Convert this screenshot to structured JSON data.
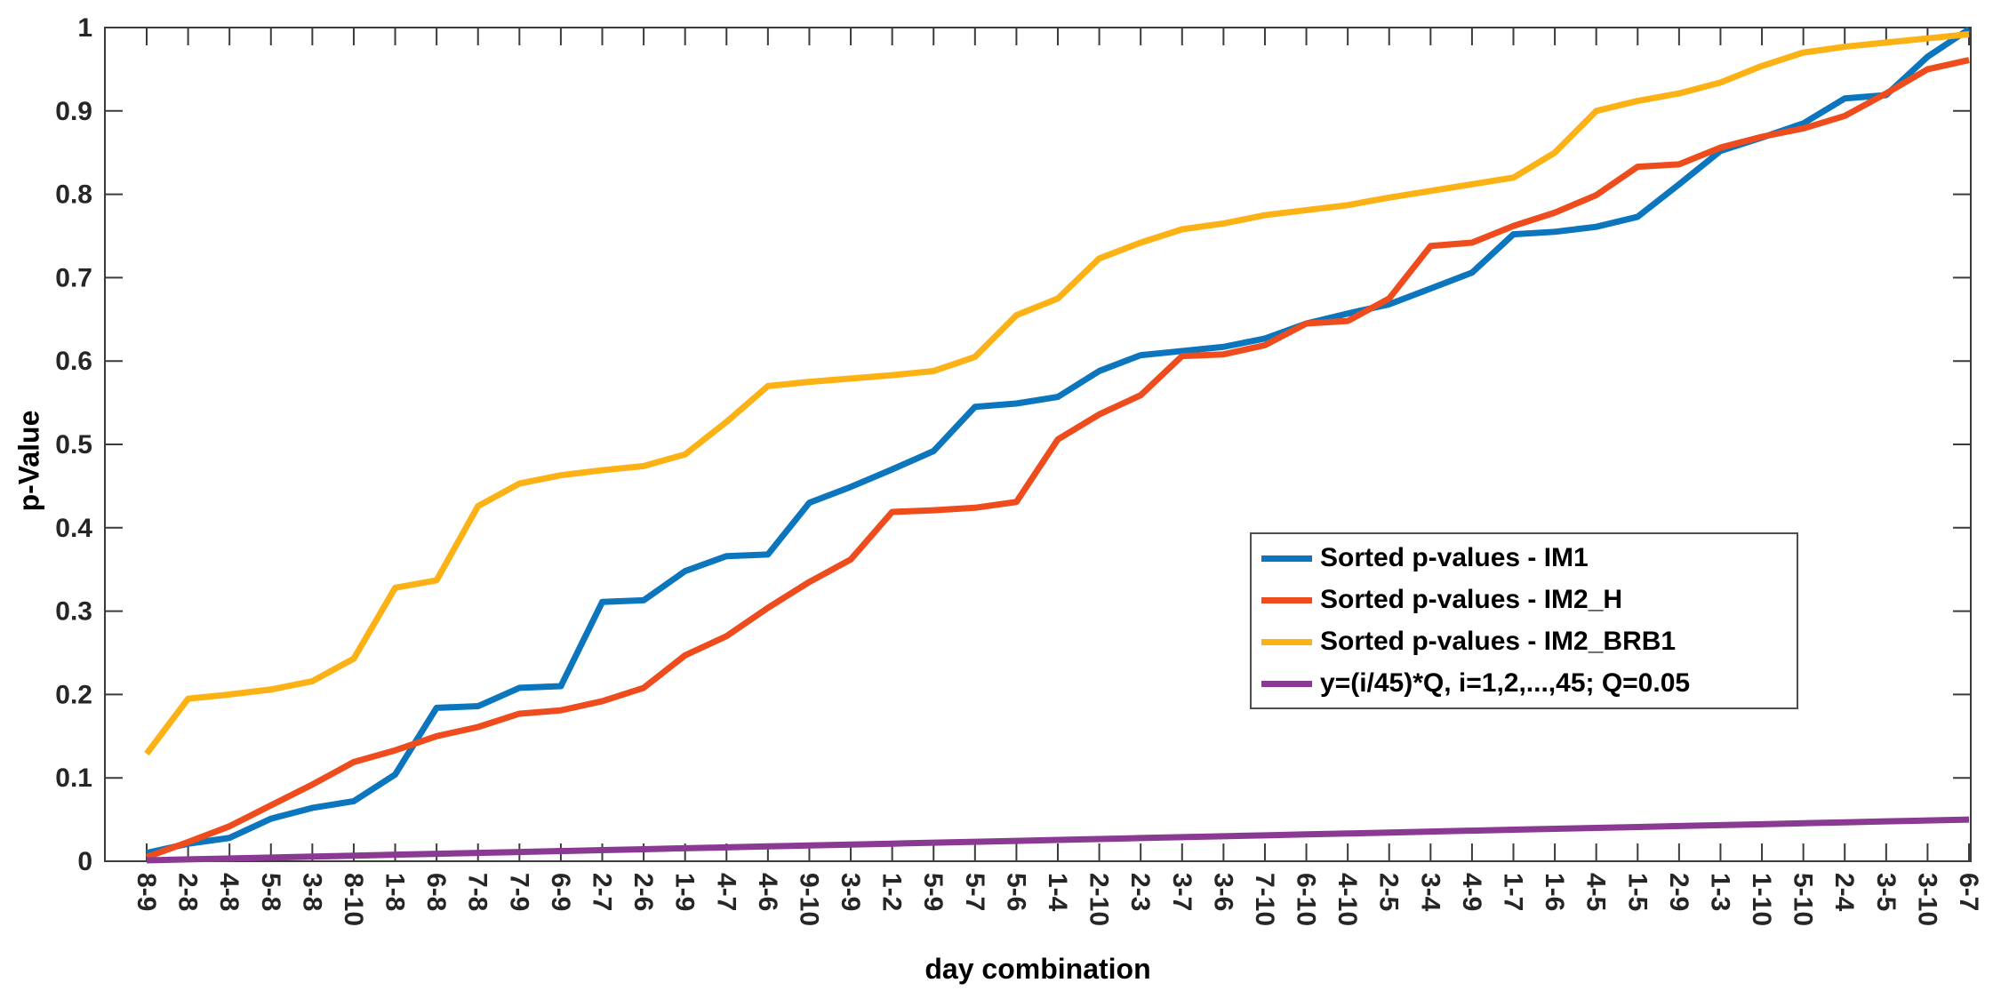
{
  "figure": {
    "background": "#ffffff",
    "axis_color": "#3b3b3b",
    "tick_label_color": "#262626"
  },
  "axes": {
    "y_title": "p-Value",
    "x_title": "day combination",
    "y_tick_labels": [
      "0",
      "0.1",
      "0.2",
      "0.3",
      "0.4",
      "0.5",
      "0.6",
      "0.7",
      "0.8",
      "0.9",
      "1"
    ],
    "y_ticks": [
      0,
      0.1,
      0.2,
      0.3,
      0.4,
      0.5,
      0.6,
      0.7,
      0.8,
      0.9,
      1
    ]
  },
  "chart_data": {
    "type": "line",
    "title": "",
    "xlabel": "day combination",
    "ylabel": "p-Value",
    "ylim": [
      0,
      1
    ],
    "grid": false,
    "legend_position": "inside-right",
    "x_tick_rotation": 90,
    "categories": [
      "8-9",
      "2-8",
      "4-8",
      "5-8",
      "3-8",
      "8-10",
      "1-8",
      "6-8",
      "7-8",
      "7-9",
      "6-9",
      "2-7",
      "2-6",
      "1-9",
      "4-7",
      "4-6",
      "9-10",
      "3-9",
      "1-2",
      "5-9",
      "5-7",
      "5-6",
      "1-4",
      "2-10",
      "2-3",
      "3-7",
      "3-6",
      "7-10",
      "6-10",
      "4-10",
      "2-5",
      "3-4",
      "4-9",
      "1-7",
      "1-6",
      "4-5",
      "1-5",
      "2-9",
      "1-3",
      "1-10",
      "5-10",
      "2-4",
      "3-5",
      "3-10",
      "6-7"
    ],
    "series": [
      {
        "name": "Sorted p-values - IM1",
        "color": "#0b76bd",
        "values": [
          0.01,
          0.021,
          0.028,
          0.051,
          0.064,
          0.072,
          0.104,
          0.184,
          0.186,
          0.208,
          0.21,
          0.311,
          0.313,
          0.348,
          0.366,
          0.368,
          0.43,
          0.449,
          0.47,
          0.492,
          0.545,
          0.549,
          0.557,
          0.588,
          0.607,
          0.612,
          0.617,
          0.627,
          0.645,
          0.657,
          0.668,
          0.687,
          0.706,
          0.752,
          0.755,
          0.761,
          0.773,
          0.812,
          0.852,
          0.868,
          0.885,
          0.915,
          0.919,
          0.965,
          0.998
        ]
      },
      {
        "name": "Sorted p-values - IM2_H",
        "color": "#ee4c1c",
        "values": [
          0.005,
          0.023,
          0.042,
          0.067,
          0.092,
          0.119,
          0.133,
          0.15,
          0.161,
          0.177,
          0.181,
          0.192,
          0.208,
          0.247,
          0.27,
          0.304,
          0.335,
          0.362,
          0.419,
          0.421,
          0.424,
          0.431,
          0.506,
          0.536,
          0.559,
          0.606,
          0.608,
          0.619,
          0.645,
          0.648,
          0.675,
          0.738,
          0.742,
          0.762,
          0.778,
          0.799,
          0.833,
          0.836,
          0.856,
          0.869,
          0.879,
          0.894,
          0.921,
          0.95,
          0.961
        ]
      },
      {
        "name": "Sorted p-values - IM2_BRB1",
        "color": "#fcb215",
        "values": [
          0.129,
          0.195,
          0.2,
          0.206,
          0.216,
          0.243,
          0.328,
          0.337,
          0.426,
          0.453,
          0.463,
          0.469,
          0.474,
          0.488,
          0.527,
          0.57,
          0.575,
          0.579,
          0.583,
          0.588,
          0.605,
          0.655,
          0.675,
          0.723,
          0.742,
          0.758,
          0.765,
          0.775,
          0.781,
          0.787,
          0.796,
          0.804,
          0.812,
          0.82,
          0.85,
          0.9,
          0.912,
          0.921,
          0.934,
          0.954,
          0.97,
          0.977,
          0.982,
          0.987,
          0.992
        ]
      },
      {
        "name": "y=(i/45)*Q, i=1,2,...,45; Q=0.05",
        "color": "#8b3a94",
        "values": [
          0.0011,
          0.0022,
          0.0033,
          0.0044,
          0.0056,
          0.0067,
          0.0078,
          0.0089,
          0.01,
          0.0111,
          0.0122,
          0.0133,
          0.0144,
          0.0156,
          0.0167,
          0.0178,
          0.0189,
          0.02,
          0.0211,
          0.0222,
          0.0233,
          0.0244,
          0.0256,
          0.0267,
          0.0278,
          0.0289,
          0.03,
          0.0311,
          0.0322,
          0.0333,
          0.0344,
          0.0356,
          0.0367,
          0.0378,
          0.0389,
          0.04,
          0.0411,
          0.0422,
          0.0433,
          0.0444,
          0.0456,
          0.0467,
          0.0478,
          0.0489,
          0.05
        ]
      }
    ]
  }
}
